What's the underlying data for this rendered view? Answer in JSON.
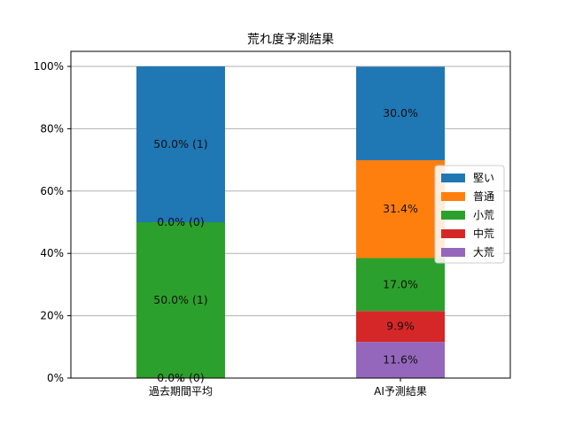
{
  "chart_data": {
    "type": "bar",
    "stacked": true,
    "title": "荒れ度予測結果",
    "xlabel": "",
    "ylabel": "",
    "categories": [
      "過去期間平均",
      "AI予測結果"
    ],
    "y_ticks": [
      "0%",
      "20%",
      "40%",
      "60%",
      "80%",
      "100%"
    ],
    "ylim": [
      0,
      100
    ],
    "grid": "y-major",
    "legend_position": "center-right",
    "series": [
      {
        "name": "大荒",
        "color": "#9467bd",
        "values": [
          0.0,
          11.6
        ],
        "labels": [
          "0.0% (0)",
          "11.6%"
        ]
      },
      {
        "name": "中荒",
        "color": "#d62728",
        "values": [
          0.0,
          9.9
        ],
        "labels": [
          "",
          "9.9%"
        ]
      },
      {
        "name": "小荒",
        "color": "#2ca02c",
        "values": [
          50.0,
          17.0
        ],
        "labels": [
          "50.0% (1)",
          "17.0%"
        ]
      },
      {
        "name": "普通",
        "color": "#ff7f0e",
        "values": [
          0.0,
          31.4
        ],
        "labels": [
          "0.0% (0)",
          "31.4%"
        ]
      },
      {
        "name": "堅い",
        "color": "#1f77b4",
        "values": [
          50.0,
          30.0
        ],
        "labels": [
          "50.0% (1)",
          "30.0%"
        ]
      }
    ],
    "legend_order": [
      "堅い",
      "普通",
      "小荒",
      "中荒",
      "大荒"
    ]
  }
}
